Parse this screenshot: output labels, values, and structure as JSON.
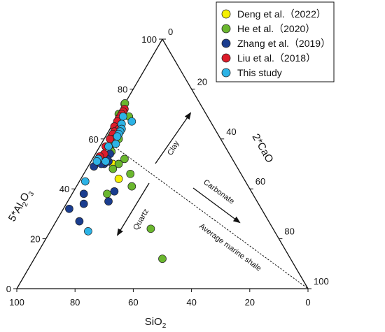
{
  "chart_data": {
    "type": "scatter",
    "subtype": "ternary",
    "axes": {
      "sio2": {
        "label_main": "SiO",
        "label_sub": "2",
        "ticks": [
          100,
          80,
          60,
          40,
          20,
          0
        ]
      },
      "al2o3": {
        "label_prefix": "5*Al",
        "label_sub1": "2",
        "label_mid": "O",
        "label_sub2": "3",
        "ticks": [
          0,
          20,
          40,
          60,
          80,
          100
        ]
      },
      "cao": {
        "label": "2*CaO",
        "ticks": [
          0,
          20,
          40,
          60,
          80,
          100
        ]
      }
    },
    "annotations": {
      "clay": "Clay",
      "carbonate": "Carbonate",
      "quartz": "Quartz",
      "marine_shale": "Average marine shale"
    },
    "reference_point": {
      "sio2": 58,
      "al2o3": 52,
      "cao": 0
    },
    "legend_position": "top-right",
    "series": [
      {
        "name": "Deng et al.（2022）",
        "color": "#f5f000",
        "points": [
          {
            "sio2": 26,
            "al2o3": 74,
            "cao": 0
          },
          {
            "sio2": 40,
            "al2o3": 55,
            "cao": 5
          },
          {
            "sio2": 42,
            "al2o3": 50,
            "cao": 8
          },
          {
            "sio2": 43,
            "al2o3": 44,
            "cao": 13
          }
        ]
      },
      {
        "name": "He et al.（2020）",
        "color": "#6ab72e",
        "points": [
          {
            "sio2": 26,
            "al2o3": 75,
            "cao": 0
          },
          {
            "sio2": 30,
            "al2o3": 70,
            "cao": 0
          },
          {
            "sio2": 34,
            "al2o3": 63,
            "cao": 3
          },
          {
            "sio2": 35,
            "al2o3": 60,
            "cao": 5
          },
          {
            "sio2": 37,
            "al2o3": 61,
            "cao": 2
          },
          {
            "sio2": 38,
            "al2o3": 58,
            "cao": 4
          },
          {
            "sio2": 40,
            "al2o3": 55,
            "cao": 5
          },
          {
            "sio2": 27,
            "al2o3": 69,
            "cao": 4
          },
          {
            "sio2": 37,
            "al2o3": 52,
            "cao": 11
          },
          {
            "sio2": 40,
            "al2o3": 50,
            "cao": 10
          },
          {
            "sio2": 38,
            "al2o3": 46,
            "cao": 16
          },
          {
            "sio2": 43,
            "al2o3": 48,
            "cao": 9
          },
          {
            "sio2": 40,
            "al2o3": 41,
            "cao": 19
          },
          {
            "sio2": 50,
            "al2o3": 38,
            "cao": 12
          },
          {
            "sio2": 42,
            "al2o3": 24,
            "cao": 34
          },
          {
            "sio2": 44,
            "al2o3": 12,
            "cao": 44
          }
        ]
      },
      {
        "name": "Zhang et al.（2019）",
        "color": "#1a3d8f",
        "points": [
          {
            "sio2": 41,
            "al2o3": 54,
            "cao": 5
          },
          {
            "sio2": 43,
            "al2o3": 51,
            "cao": 6
          },
          {
            "sio2": 43,
            "al2o3": 52,
            "cao": 5
          },
          {
            "sio2": 45,
            "al2o3": 50,
            "cao": 5
          },
          {
            "sio2": 46,
            "al2o3": 50,
            "cao": 4
          },
          {
            "sio2": 49,
            "al2o3": 49,
            "cao": 2
          },
          {
            "sio2": 47,
            "al2o3": 39,
            "cao": 14
          },
          {
            "sio2": 51,
            "al2o3": 35,
            "cao": 14
          },
          {
            "sio2": 58,
            "al2o3": 38,
            "cao": 4
          },
          {
            "sio2": 60,
            "al2o3": 34,
            "cao": 6
          },
          {
            "sio2": 66,
            "al2o3": 32,
            "cao": 2
          },
          {
            "sio2": 65,
            "al2o3": 27,
            "cao": 8
          }
        ]
      },
      {
        "name": "Liu et al.（2018）",
        "color": "#dd1c2a",
        "points": [
          {
            "sio2": 27,
            "al2o3": 72,
            "cao": 1
          },
          {
            "sio2": 28,
            "al2o3": 71,
            "cao": 1
          },
          {
            "sio2": 29,
            "al2o3": 70,
            "cao": 1
          },
          {
            "sio2": 30,
            "al2o3": 69,
            "cao": 1
          },
          {
            "sio2": 31,
            "al2o3": 68,
            "cao": 1
          },
          {
            "sio2": 32,
            "al2o3": 67,
            "cao": 1
          },
          {
            "sio2": 34,
            "al2o3": 65,
            "cao": 1
          },
          {
            "sio2": 33,
            "al2o3": 64,
            "cao": 3
          },
          {
            "sio2": 35,
            "al2o3": 63,
            "cao": 2
          },
          {
            "sio2": 36,
            "al2o3": 62,
            "cao": 2
          },
          {
            "sio2": 37,
            "al2o3": 60,
            "cao": 3
          },
          {
            "sio2": 38,
            "al2o3": 60,
            "cao": 2
          },
          {
            "sio2": 40,
            "al2o3": 57,
            "cao": 3
          },
          {
            "sio2": 41,
            "al2o3": 57,
            "cao": 2
          },
          {
            "sio2": 43,
            "al2o3": 54,
            "cao": 3
          },
          {
            "sio2": 45,
            "al2o3": 53,
            "cao": 2
          },
          {
            "sio2": 46,
            "al2o3": 52,
            "cao": 2
          }
        ]
      },
      {
        "name": "This study",
        "color": "#2cb3e6",
        "points": [
          {
            "sio2": 27,
            "al2o3": 67,
            "cao": 6
          },
          {
            "sio2": 29,
            "al2o3": 69,
            "cao": 2
          },
          {
            "sio2": 31,
            "al2o3": 66,
            "cao": 3
          },
          {
            "sio2": 32,
            "al2o3": 64,
            "cao": 4
          },
          {
            "sio2": 33,
            "al2o3": 63,
            "cao": 4
          },
          {
            "sio2": 34,
            "al2o3": 62,
            "cao": 4
          },
          {
            "sio2": 35,
            "al2o3": 61,
            "cao": 4
          },
          {
            "sio2": 37,
            "al2o3": 58,
            "cao": 5
          },
          {
            "sio2": 40,
            "al2o3": 57,
            "cao": 3
          },
          {
            "sio2": 44,
            "al2o3": 51,
            "cao": 5
          },
          {
            "sio2": 46,
            "al2o3": 52,
            "cao": 2
          },
          {
            "sio2": 47,
            "al2o3": 51,
            "cao": 2
          },
          {
            "sio2": 55,
            "al2o3": 43,
            "cao": 2
          },
          {
            "sio2": 64,
            "al2o3": 23,
            "cao": 13
          }
        ]
      }
    ]
  }
}
